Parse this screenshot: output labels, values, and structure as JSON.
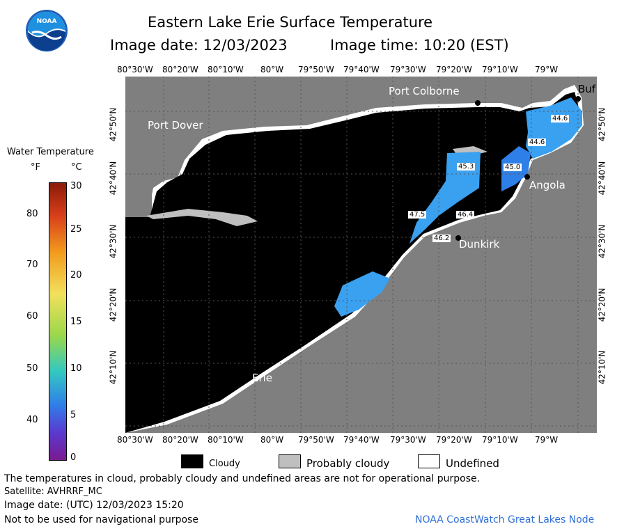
{
  "header": {
    "title": "Eastern Lake Erie Surface Temperature",
    "image_date": "Image date: 12/03/2023",
    "image_time": "Image time: 10:20 (EST)"
  },
  "logo": {
    "text": "NOAA"
  },
  "longitude_ticks": [
    "80°30'W",
    "80°20'W",
    "80°10'W",
    "80°W",
    "79°50'W",
    "79°40'W",
    "79°30'W",
    "79°20'W",
    "79°10'W",
    "79°W"
  ],
  "latitude_ticks": [
    "42°50'N",
    "42°40'N",
    "42°30'N",
    "42°20'N",
    "42°10'N"
  ],
  "places": {
    "port_colborne": "Port Colborne",
    "port_dover": "Port Dover",
    "angola": "Angola",
    "dunkirk": "Dunkirk",
    "erie": "Erie",
    "buffalo": "Buf"
  },
  "temperature_labels": [
    "44.6",
    "44.6",
    "45.3",
    "45.0",
    "47.5",
    "46.4",
    "46.2"
  ],
  "colorbar": {
    "title": "Water Temperature",
    "unit_f": "°F",
    "unit_c": "°C",
    "f_ticks": [
      "80",
      "70",
      "60",
      "50",
      "40"
    ],
    "c_ticks": [
      "30",
      "25",
      "20",
      "15",
      "10",
      "5",
      "0"
    ]
  },
  "legend": {
    "cloudy": "Cloudy",
    "probably_cloudy": "Probably cloudy",
    "undefined": "Undefined"
  },
  "footer": {
    "disclaimer": "The temperatures in cloud, probably cloudy and undefined areas are not for operational purpose.",
    "satellite": "Satellite: AVHRRF_MC",
    "utc_date": "Image date: (UTC) 12/03/2023  15:20",
    "nav_warning": "Not to be used for navigational purpose",
    "source": "NOAA CoastWatch Great Lakes Node"
  },
  "colors": {
    "land": "#7f7f7f",
    "cloud": "#000000",
    "probably_cloudy": "#bfbfbf",
    "undefined": "#ffffff",
    "water_warm": "#3aa0f0",
    "water_cool": "#2f7fe8"
  }
}
